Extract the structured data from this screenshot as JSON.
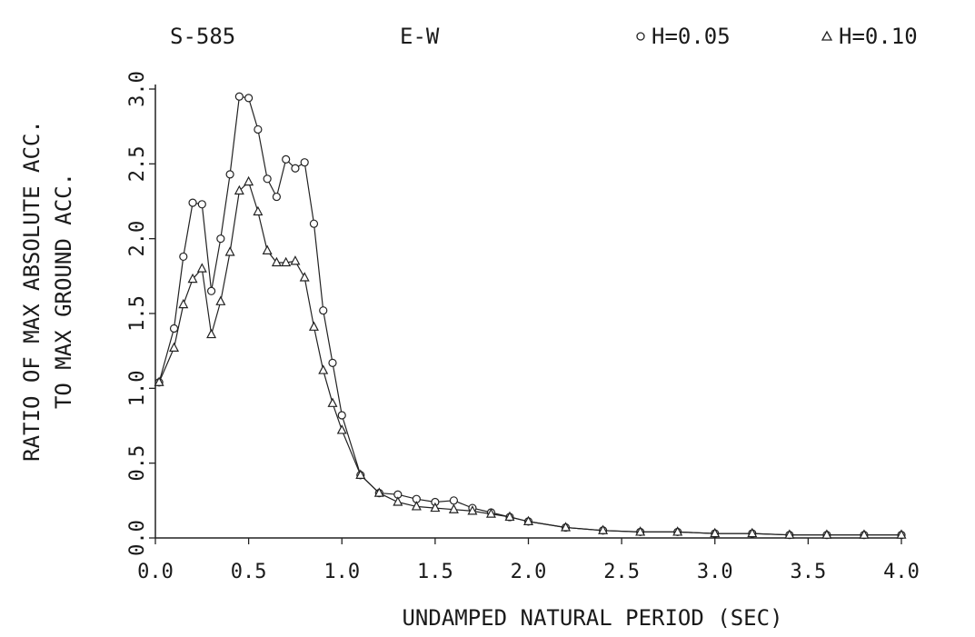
{
  "chart_data": {
    "type": "line",
    "header": {
      "station": "S-585",
      "component": "E-W"
    },
    "xlabel": "UNDAMPED NATURAL PERIOD (SEC)",
    "ylabel_line1": "RATIO OF MAX ABSOLUTE ACC.",
    "ylabel_line2": "TO MAX GROUND ACC.",
    "xlim": [
      0,
      4.0
    ],
    "ylim": [
      0,
      3.0
    ],
    "xticks": [
      0,
      0.5,
      1.0,
      1.5,
      2.0,
      2.5,
      3.0,
      3.5,
      4.0
    ],
    "xtick_labels": [
      "0.0",
      "0.5",
      "1.0",
      "1.5",
      "2.0",
      "2.5",
      "3.0",
      "3.5",
      "4.0"
    ],
    "yticks": [
      0,
      0.5,
      1.0,
      1.5,
      2.0,
      2.5,
      3.0
    ],
    "ytick_labels": [
      "0.0",
      "0.5",
      "1.0",
      "1.5",
      "2.0",
      "2.5",
      "3.0"
    ],
    "grid": false,
    "legend_position": "top-right",
    "series": [
      {
        "name": "H=0.05",
        "marker": "circle",
        "x": [
          0.02,
          0.1,
          0.15,
          0.2,
          0.25,
          0.3,
          0.35,
          0.4,
          0.45,
          0.5,
          0.55,
          0.6,
          0.65,
          0.7,
          0.75,
          0.8,
          0.85,
          0.9,
          0.95,
          1.0,
          1.1,
          1.2,
          1.3,
          1.4,
          1.5,
          1.6,
          1.7,
          1.8,
          1.9,
          2.0,
          2.2,
          2.4,
          2.6,
          2.8,
          3.0,
          3.2,
          3.4,
          3.6,
          3.8,
          4.0
        ],
        "y": [
          1.04,
          1.4,
          1.88,
          2.24,
          2.23,
          1.65,
          2.0,
          2.43,
          2.95,
          2.94,
          2.73,
          2.4,
          2.28,
          2.53,
          2.47,
          2.51,
          2.1,
          1.52,
          1.17,
          0.82,
          0.42,
          0.3,
          0.29,
          0.26,
          0.24,
          0.25,
          0.2,
          0.17,
          0.14,
          0.11,
          0.07,
          0.05,
          0.04,
          0.04,
          0.03,
          0.03,
          0.02,
          0.02,
          0.02,
          0.02
        ]
      },
      {
        "name": "H=0.10",
        "marker": "triangle",
        "x": [
          0.02,
          0.1,
          0.15,
          0.2,
          0.25,
          0.3,
          0.35,
          0.4,
          0.45,
          0.5,
          0.55,
          0.6,
          0.65,
          0.7,
          0.75,
          0.8,
          0.85,
          0.9,
          0.95,
          1.0,
          1.1,
          1.2,
          1.3,
          1.4,
          1.5,
          1.6,
          1.7,
          1.8,
          1.9,
          2.0,
          2.2,
          2.4,
          2.6,
          2.8,
          3.0,
          3.2,
          3.4,
          3.6,
          3.8,
          4.0
        ],
        "y": [
          1.04,
          1.27,
          1.56,
          1.73,
          1.8,
          1.36,
          1.58,
          1.91,
          2.32,
          2.38,
          2.18,
          1.92,
          1.84,
          1.84,
          1.85,
          1.74,
          1.41,
          1.12,
          0.9,
          0.72,
          0.42,
          0.3,
          0.24,
          0.21,
          0.2,
          0.19,
          0.18,
          0.16,
          0.14,
          0.11,
          0.07,
          0.05,
          0.04,
          0.04,
          0.03,
          0.03,
          0.02,
          0.02,
          0.02,
          0.02
        ]
      }
    ]
  }
}
